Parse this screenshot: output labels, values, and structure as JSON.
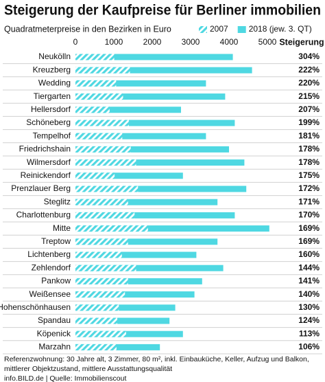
{
  "chart_data": {
    "type": "bar",
    "title": "Steigerung der Kaufpreise für Berliner immobilien",
    "subtitle": "Quadratmeterpreise in den Bezirken in Euro",
    "categories": [
      "Neukölln",
      "Kreuzberg",
      "Wedding",
      "Tiergarten",
      "Hellersdorf",
      "Schöneberg",
      "Tempelhof",
      "Friedrichshain",
      "Wilmersdorf",
      "Reinickendorf",
      "Prenzlauer Berg",
      "Steglitz",
      "Charlottenburg",
      "Mitte",
      "Treptow",
      "Lichtenberg",
      "Zehlendorf",
      "Pankow",
      "Weißensee",
      "Hohenschönhausen",
      "Spandau",
      "Köpenick",
      "Marzahn"
    ],
    "series": [
      {
        "name": "2007",
        "color": "#4fd8e2",
        "pattern": "hatch",
        "values": [
          1010,
          1420,
          1060,
          1240,
          890,
          1390,
          1220,
          1440,
          1580,
          1020,
          1630,
          1370,
          1540,
          1890,
          1370,
          1210,
          1580,
          1370,
          1290,
          1130,
          1090,
          1320,
          1070
        ]
      },
      {
        "name": "2018 (jew. 3. QT)",
        "color": "#4fd8e2",
        "values": [
          4100,
          4600,
          3400,
          3900,
          2750,
          4150,
          3400,
          4000,
          4400,
          2800,
          4450,
          3700,
          4150,
          5050,
          3700,
          3150,
          3850,
          3300,
          3100,
          2600,
          2450,
          2800,
          2200
        ]
      }
    ],
    "steigerung": {
      "header": "Steigerung",
      "values": [
        304,
        222,
        220,
        215,
        207,
        199,
        181,
        178,
        178,
        175,
        172,
        171,
        170,
        169,
        169,
        160,
        144,
        141,
        140,
        130,
        124,
        113,
        106
      ],
      "value_labels": [
        "304%",
        "222%",
        "220%",
        "215%",
        "207%",
        "199%",
        "181%",
        "178%",
        "178%",
        "175%",
        "172%",
        "171%",
        "170%",
        "169%",
        "169%",
        "160%",
        "144%",
        "141%",
        "140%",
        "130%",
        "124%",
        "113%",
        "106%"
      ]
    },
    "xlim": [
      0,
      5000
    ],
    "xticks": [
      0,
      1000,
      2000,
      3000,
      4000,
      5000
    ],
    "note": [
      "Referenzwohnung: 30 Jahre alt, 3 Zimmer, 80 m², inkl. Einbauküche, Keller, Aufzug und Balkon,",
      "mittlerer Objektzustand, mittlere Ausstattungsqualität"
    ],
    "source": "info.BILD.de | Quelle: Immobilienscout"
  }
}
